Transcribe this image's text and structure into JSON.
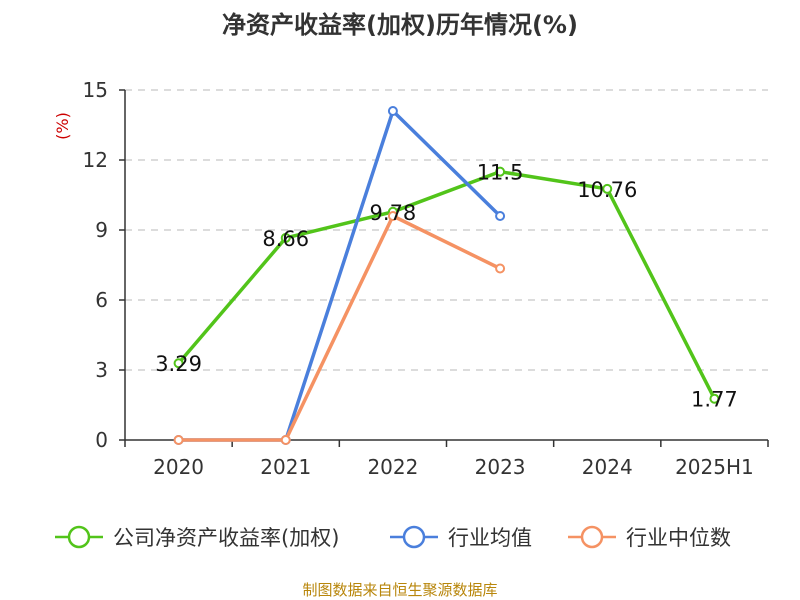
{
  "chart_data": {
    "type": "line",
    "title": "净资产收益率(加权)历年情况(%)",
    "y_unit": "(%)",
    "categories": [
      "2020",
      "2021",
      "2022",
      "2023",
      "2024",
      "2025H1"
    ],
    "ylim": [
      0,
      15
    ],
    "yticks": [
      0,
      3,
      6,
      9,
      12,
      15
    ],
    "grid": true,
    "legend_position": "bottom",
    "series": [
      {
        "name": "公司净资产收益率(加权)",
        "color": "#52c41a",
        "values": [
          3.29,
          8.66,
          9.78,
          11.5,
          10.76,
          1.77
        ],
        "labels": [
          "3.29",
          "8.66",
          "9.78",
          "11.5",
          "10.76",
          "1.77"
        ]
      },
      {
        "name": "行业均值",
        "color": "#4a7fdc",
        "values": [
          0,
          0,
          14.1,
          9.6,
          null,
          null
        ]
      },
      {
        "name": "行业中位数",
        "color": "#f59263",
        "values": [
          0,
          0,
          9.6,
          7.35,
          null,
          null
        ]
      }
    ]
  },
  "source": "制图数据来自恒生聚源数据库"
}
